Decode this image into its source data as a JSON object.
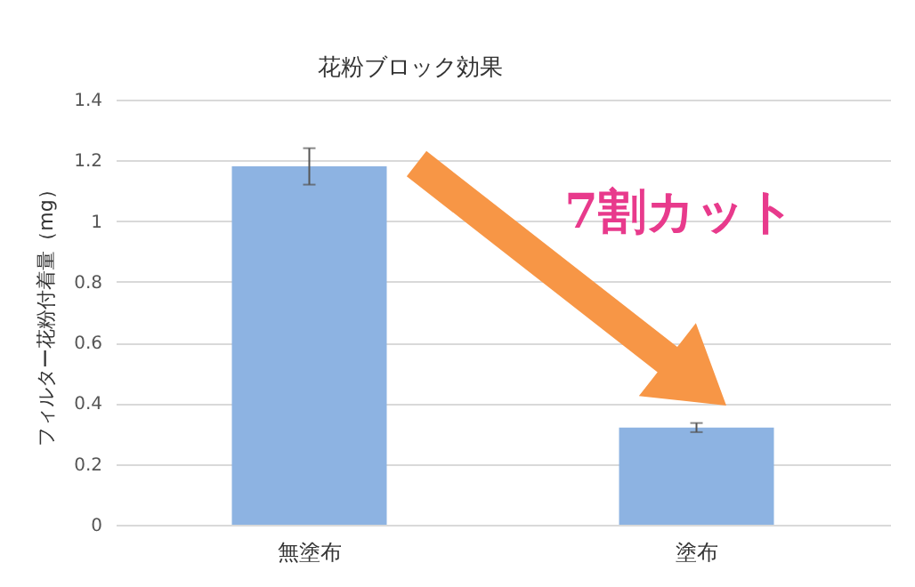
{
  "chart_data": {
    "type": "bar",
    "title": "花粉ブロック効果",
    "ylabel": "フィルター花粉付着量（mg）",
    "categories": [
      "無塗布",
      "塗布"
    ],
    "values": [
      1.18,
      0.32
    ],
    "errors": [
      0.06,
      0.015
    ],
    "color": "#8db3e2",
    "ylim": [
      0,
      1.4
    ],
    "yticks": [
      0,
      0.2,
      0.4,
      0.6,
      0.8,
      1,
      1.2,
      1.4
    ],
    "grid": "y",
    "annotations": [
      "7割カット"
    ]
  }
}
